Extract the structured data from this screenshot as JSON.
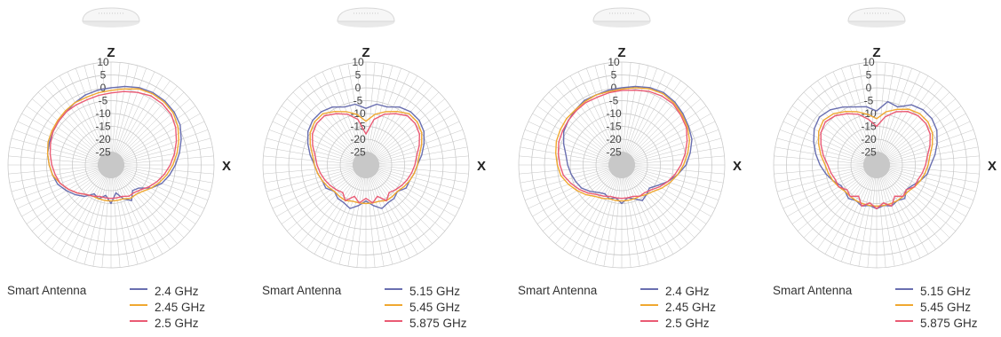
{
  "legend_title": "Smart Antenna",
  "axis_labels": {
    "z": "Z",
    "x": "X"
  },
  "colors": {
    "band1": "#6a6fb0",
    "band2": "#f0a830",
    "band3": "#ea5a74",
    "grid": "#c4c4c4",
    "hub": "#c8c8c8"
  },
  "device_icon": "ceiling-access-point-icon",
  "chart_data": [
    {
      "type": "polar-line",
      "radial_axis": {
        "min": -30,
        "max": 10,
        "ticks": [
          "10",
          "5",
          "0",
          "-5",
          "-10",
          "-15",
          "-20",
          "-25"
        ],
        "tick_values": [
          10,
          5,
          0,
          -5,
          -10,
          -15,
          -20,
          -25
        ]
      },
      "angular_axis": {
        "start": "Z",
        "direction": "clockwise",
        "step_deg": 10
      },
      "grid": true,
      "legend": "bottom",
      "angles": [
        0,
        10,
        20,
        30,
        40,
        50,
        60,
        70,
        80,
        90,
        100,
        110,
        120,
        130,
        140,
        150,
        160,
        170,
        180,
        190,
        200,
        210,
        220,
        230,
        240,
        250,
        260,
        270,
        280,
        290,
        300,
        310,
        320,
        330,
        340,
        350
      ],
      "series": [
        {
          "name": "2.4 GHz",
          "values": [
            0,
            1,
            2,
            2.5,
            2.5,
            2,
            1,
            -1,
            -3,
            -5,
            -7,
            -9,
            -12,
            -16,
            -17,
            -14,
            -16,
            -19,
            -15,
            -18,
            -16,
            -17,
            -14,
            -12,
            -10,
            -8,
            -7,
            -6,
            -5,
            -4.5,
            -4,
            -3.5,
            -3,
            -2,
            -1,
            -0.5
          ]
        },
        {
          "name": "2.45 GHz",
          "values": [
            -1,
            0,
            1.5,
            2,
            2,
            1.5,
            0,
            -2,
            -4,
            -6,
            -8,
            -10,
            -12,
            -14,
            -15,
            -15,
            -16,
            -16,
            -16,
            -16,
            -16,
            -16,
            -15,
            -13,
            -11,
            -9,
            -7,
            -6,
            -5,
            -4,
            -3.5,
            -3,
            -2.5,
            -2,
            -2,
            -1.5
          ]
        },
        {
          "name": "2.5 GHz",
          "values": [
            -2,
            -1,
            0,
            1,
            1,
            0.5,
            -1,
            -3,
            -5,
            -7,
            -9,
            -11,
            -13,
            -15,
            -16,
            -16,
            -17,
            -17,
            -17,
            -17,
            -17,
            -16,
            -15,
            -13,
            -11,
            -9,
            -8,
            -7,
            -6,
            -5,
            -4,
            -3.5,
            -3,
            -3,
            -3,
            -2.5
          ]
        }
      ]
    },
    {
      "type": "polar-line",
      "radial_axis": {
        "min": -30,
        "max": 10,
        "ticks": [
          "10",
          "5",
          "0",
          "-5",
          "-10",
          "-15",
          "-20",
          "-25"
        ],
        "tick_values": [
          10,
          5,
          0,
          -5,
          -10,
          -15,
          -20,
          -25
        ]
      },
      "angular_axis": {
        "start": "Z",
        "direction": "clockwise",
        "step_deg": 10
      },
      "grid": true,
      "legend": "bottom",
      "angles": [
        0,
        10,
        20,
        30,
        40,
        50,
        60,
        70,
        80,
        90,
        100,
        110,
        120,
        130,
        140,
        150,
        160,
        170,
        180,
        190,
        200,
        210,
        220,
        230,
        240,
        250,
        260,
        270,
        280,
        290,
        300,
        310,
        320,
        330,
        340,
        350
      ],
      "series": [
        {
          "name": "5.15 GHz",
          "values": [
            -8,
            -6,
            -6,
            -4,
            -3,
            -3,
            -4,
            -6,
            -8,
            -10,
            -11,
            -12,
            -12,
            -14,
            -13,
            -13,
            -12,
            -14,
            -16,
            -14,
            -12,
            -13,
            -13,
            -14,
            -12,
            -12,
            -11,
            -10,
            -8,
            -6,
            -4,
            -3,
            -3,
            -4,
            -6,
            -6
          ]
        },
        {
          "name": "5.45 GHz",
          "values": [
            -13,
            -10,
            -8,
            -6,
            -4,
            -4,
            -5,
            -7,
            -9,
            -10,
            -11,
            -12,
            -13,
            -14,
            -14,
            -14,
            -15,
            -15,
            -15,
            -15,
            -15,
            -14,
            -14,
            -14,
            -13,
            -12,
            -11,
            -10,
            -9,
            -7,
            -5,
            -4,
            -4,
            -6,
            -8,
            -10
          ]
        },
        {
          "name": "5.875 GHz",
          "values": [
            -18,
            -12,
            -9,
            -7,
            -5,
            -5,
            -6,
            -8,
            -10,
            -11,
            -12,
            -13,
            -14,
            -15,
            -16,
            -14,
            -17,
            -15,
            -17,
            -15,
            -17,
            -14,
            -16,
            -15,
            -14,
            -13,
            -12,
            -11,
            -10,
            -8,
            -6,
            -5,
            -5,
            -7,
            -9,
            -12
          ]
        }
      ]
    },
    {
      "type": "polar-line",
      "radial_axis": {
        "min": -30,
        "max": 10,
        "ticks": [
          "10",
          "5",
          "0",
          "-5",
          "-10",
          "-15",
          "-20",
          "-25"
        ],
        "tick_values": [
          10,
          5,
          0,
          -5,
          -10,
          -15,
          -20,
          -25
        ]
      },
      "angular_axis": {
        "start": "Z",
        "direction": "clockwise",
        "step_deg": 10
      },
      "grid": true,
      "legend": "bottom",
      "angles": [
        0,
        10,
        20,
        30,
        40,
        50,
        60,
        70,
        80,
        90,
        100,
        110,
        120,
        130,
        140,
        150,
        160,
        170,
        180,
        190,
        200,
        210,
        220,
        230,
        240,
        250,
        260,
        270,
        280,
        290,
        300,
        310,
        320,
        330,
        340,
        350
      ],
      "series": [
        {
          "name": "2.4 GHz",
          "values": [
            0,
            1,
            2,
            2.5,
            2,
            1,
            0,
            -1,
            -3,
            -5,
            -8,
            -11,
            -14,
            -16,
            -15,
            -14,
            -16,
            -17,
            -15,
            -17,
            -16,
            -17,
            -16,
            -14,
            -12,
            -11,
            -10,
            -9,
            -8,
            -6,
            -4,
            -3,
            -2,
            -1,
            -1,
            -0.5
          ]
        },
        {
          "name": "2.45 GHz",
          "values": [
            -0.5,
            0.5,
            1.5,
            2,
            1.5,
            0.5,
            -0.5,
            -2,
            -4,
            -6,
            -8,
            -10,
            -12,
            -14,
            -15,
            -16,
            -16,
            -16,
            -16,
            -16,
            -16,
            -15,
            -14,
            -12,
            -10,
            -8,
            -6,
            -5,
            -4,
            -3,
            -2.5,
            -2,
            -2,
            -1.5,
            -1,
            -1
          ]
        },
        {
          "name": "2.5 GHz",
          "values": [
            -1,
            -0.5,
            0.5,
            1,
            1,
            0,
            -1,
            -3,
            -5,
            -7,
            -9,
            -11,
            -13,
            -15,
            -16,
            -16,
            -17,
            -17,
            -17,
            -17,
            -17,
            -16,
            -15,
            -13,
            -11,
            -9,
            -7,
            -6,
            -5,
            -4,
            -3.5,
            -3,
            -2.5,
            -2,
            -2,
            -1.5
          ]
        }
      ]
    },
    {
      "type": "polar-line",
      "radial_axis": {
        "min": -30,
        "max": 10,
        "ticks": [
          "10",
          "5",
          "0",
          "-5",
          "-10",
          "-15",
          "-20",
          "-25"
        ],
        "tick_values": [
          10,
          5,
          0,
          -5,
          -10,
          -15,
          -20,
          -25
        ]
      },
      "angular_axis": {
        "start": "Z",
        "direction": "clockwise",
        "step_deg": 10
      },
      "grid": true,
      "legend": "bottom",
      "angles": [
        0,
        10,
        20,
        30,
        40,
        50,
        60,
        70,
        80,
        90,
        100,
        110,
        120,
        130,
        140,
        150,
        160,
        170,
        180,
        190,
        200,
        210,
        220,
        230,
        240,
        250,
        260,
        270,
        280,
        290,
        300,
        310,
        320,
        330,
        340,
        350
      ],
      "series": [
        {
          "name": "5.15 GHz",
          "values": [
            -9,
            -5,
            -6,
            -3,
            -2,
            -2,
            -3,
            -5,
            -7,
            -9,
            -10,
            -12,
            -14,
            -15,
            -13,
            -14,
            -13,
            -14,
            -13,
            -14,
            -13,
            -14,
            -13,
            -14,
            -14,
            -12,
            -10,
            -8,
            -6,
            -4,
            -2,
            -1,
            -2,
            -4,
            -6,
            -7
          ]
        },
        {
          "name": "5.45 GHz",
          "values": [
            -12,
            -9,
            -7,
            -5,
            -4,
            -4,
            -5,
            -7,
            -9,
            -10,
            -11,
            -12,
            -13,
            -14,
            -14,
            -14,
            -14,
            -14,
            -14,
            -14,
            -14,
            -14,
            -14,
            -14,
            -13,
            -12,
            -11,
            -10,
            -8,
            -6,
            -4,
            -3,
            -4,
            -6,
            -8,
            -10
          ]
        },
        {
          "name": "5.875 GHz",
          "values": [
            -15,
            -11,
            -8,
            -6,
            -5,
            -5,
            -6,
            -8,
            -10,
            -11,
            -12,
            -13,
            -13,
            -15,
            -14,
            -16,
            -13,
            -15,
            -13,
            -15,
            -13,
            -16,
            -14,
            -15,
            -13,
            -13,
            -12,
            -11,
            -9,
            -7,
            -5,
            -4,
            -5,
            -7,
            -9,
            -12
          ]
        }
      ]
    }
  ]
}
